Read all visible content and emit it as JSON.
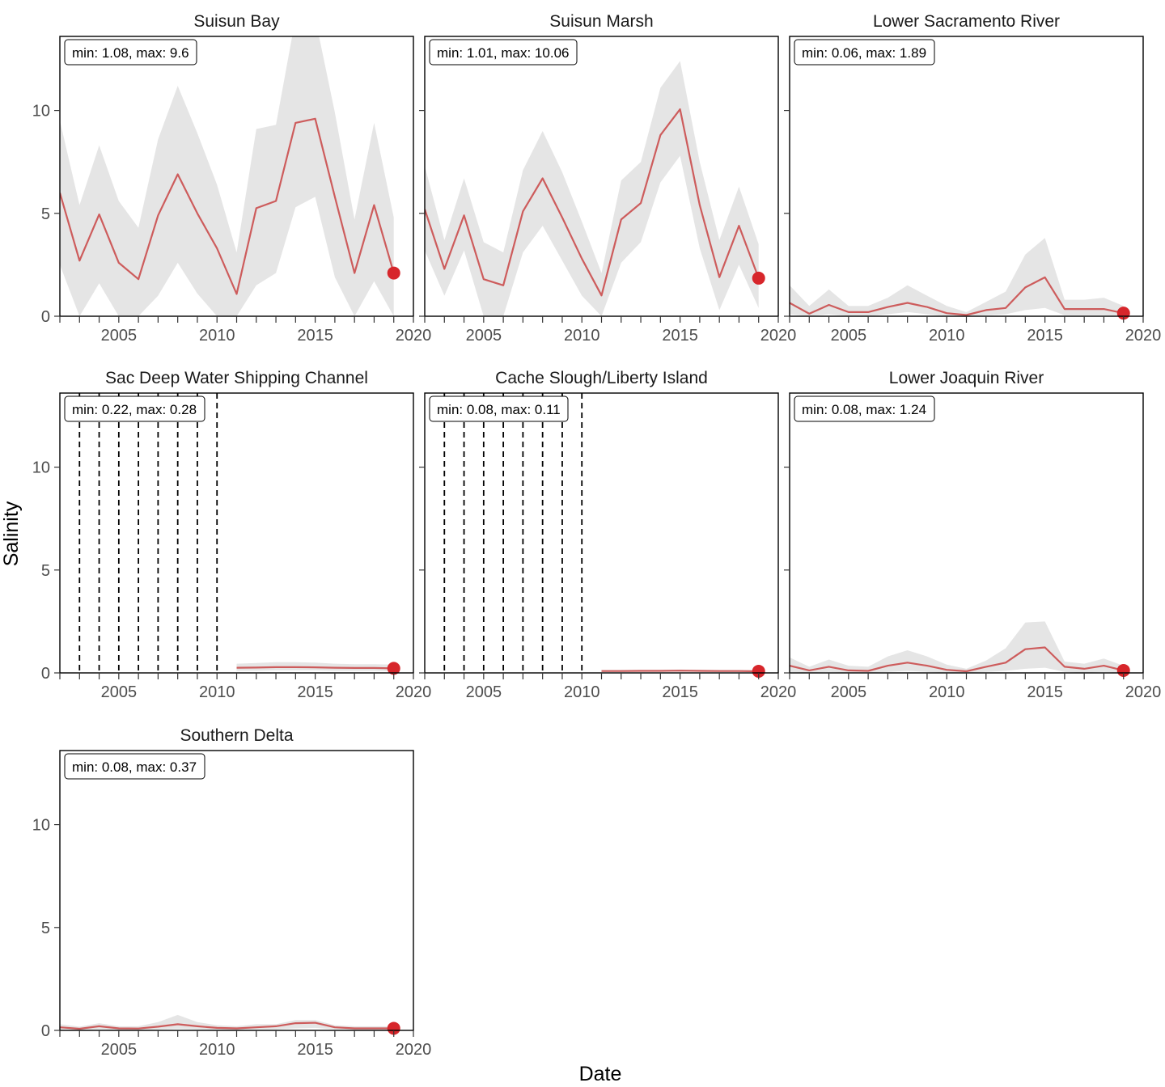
{
  "chart_data": {
    "type": "line",
    "layout": "faceted",
    "xlabel": "Date",
    "ylabel": "Salinity",
    "xlim": [
      2002,
      2020
    ],
    "ylim": [
      0,
      13.6
    ],
    "x_ticks": [
      2005,
      2010,
      2015,
      2020
    ],
    "y_ticks": [
      0,
      5,
      10
    ],
    "legend": "none",
    "colors": {
      "line": "#cd5c5c",
      "ribbon": "#e5e5e5",
      "current_point": "#d7262b",
      "missing_year_marker": "#000000"
    },
    "panels": [
      {
        "title": "Suisun Bay",
        "stats": "min: 1.08, max: 9.6",
        "x": [
          2002,
          2003,
          2004,
          2005,
          2006,
          2007,
          2008,
          2009,
          2010,
          2011,
          2012,
          2013,
          2014,
          2015,
          2016,
          2017,
          2018,
          2019
        ],
        "mean": [
          6.0,
          2.7,
          4.95,
          2.6,
          1.8,
          4.9,
          6.9,
          5.0,
          3.3,
          1.08,
          5.25,
          5.6,
          9.4,
          9.6,
          5.8,
          2.1,
          5.4,
          2.1
        ],
        "lower": [
          2.5,
          0,
          1.6,
          0,
          0,
          1.0,
          2.6,
          1.1,
          0,
          0,
          1.5,
          2.1,
          5.3,
          5.8,
          1.9,
          0,
          1.7,
          0
        ],
        "upper": [
          9.5,
          5.4,
          8.3,
          5.6,
          4.3,
          8.6,
          11.2,
          8.9,
          6.4,
          3.1,
          9.1,
          9.3,
          14.5,
          14.5,
          9.9,
          4.7,
          9.4,
          4.8
        ],
        "current": {
          "x": 2019,
          "y": 2.1
        },
        "missing_years": []
      },
      {
        "title": "Suisun Marsh",
        "stats": "min: 1.01, max: 10.06",
        "x": [
          2002,
          2003,
          2004,
          2005,
          2006,
          2007,
          2008,
          2009,
          2010,
          2011,
          2012,
          2013,
          2014,
          2015,
          2016,
          2017,
          2018,
          2019
        ],
        "mean": [
          5.2,
          2.3,
          4.9,
          1.8,
          1.5,
          5.1,
          6.7,
          4.8,
          2.8,
          1.01,
          4.7,
          5.5,
          8.8,
          10.06,
          5.4,
          1.9,
          4.4,
          1.85
        ],
        "lower": [
          3.2,
          1.0,
          3.2,
          0,
          0,
          3.1,
          4.4,
          2.7,
          1.0,
          0,
          2.6,
          3.6,
          6.5,
          7.8,
          3.3,
          0.3,
          2.5,
          0.4
        ],
        "upper": [
          7.3,
          3.7,
          6.7,
          3.6,
          3.1,
          7.1,
          9.0,
          7.0,
          4.6,
          2.1,
          6.6,
          7.5,
          11.1,
          12.4,
          7.5,
          3.7,
          6.3,
          3.5
        ],
        "current": {
          "x": 2019,
          "y": 1.85
        },
        "missing_years": []
      },
      {
        "title": "Lower Sacramento River",
        "stats": "min: 0.06, max: 1.89",
        "x": [
          2002,
          2003,
          2004,
          2005,
          2006,
          2007,
          2008,
          2009,
          2010,
          2011,
          2012,
          2013,
          2014,
          2015,
          2016,
          2017,
          2018,
          2019
        ],
        "mean": [
          0.65,
          0.12,
          0.55,
          0.2,
          0.2,
          0.45,
          0.65,
          0.45,
          0.15,
          0.06,
          0.3,
          0.4,
          1.4,
          1.89,
          0.35,
          0.35,
          0.35,
          0.15
        ],
        "lower": [
          0.1,
          0,
          0.1,
          0,
          0,
          0.1,
          0.2,
          0.1,
          0,
          0,
          0.05,
          0.1,
          0.3,
          0.4,
          0.05,
          0.05,
          0.05,
          0
        ],
        "upper": [
          1.5,
          0.5,
          1.3,
          0.5,
          0.5,
          0.9,
          1.5,
          1.0,
          0.5,
          0.2,
          0.7,
          1.2,
          3.0,
          3.8,
          0.8,
          0.8,
          0.9,
          0.5
        ],
        "current": {
          "x": 2019,
          "y": 0.15
        },
        "missing_years": []
      },
      {
        "title": "Sac Deep Water Shipping Channel",
        "stats": "min: 0.22, max: 0.28",
        "x": [
          2011,
          2012,
          2013,
          2014,
          2015,
          2016,
          2017,
          2018,
          2019
        ],
        "mean": [
          0.25,
          0.26,
          0.28,
          0.28,
          0.27,
          0.25,
          0.24,
          0.24,
          0.22
        ],
        "lower": [
          0.1,
          0.1,
          0.12,
          0.12,
          0.12,
          0.1,
          0.1,
          0.1,
          0.08
        ],
        "upper": [
          0.45,
          0.48,
          0.52,
          0.52,
          0.5,
          0.45,
          0.42,
          0.42,
          0.4
        ],
        "current": {
          "x": 2019,
          "y": 0.22
        },
        "missing_years": [
          2003,
          2004,
          2005,
          2006,
          2007,
          2008,
          2009,
          2010
        ]
      },
      {
        "title": "Cache Slough/Liberty Island",
        "stats": "min: 0.08, max: 0.11",
        "x": [
          2011,
          2012,
          2013,
          2014,
          2015,
          2016,
          2017,
          2018,
          2019
        ],
        "mean": [
          0.09,
          0.09,
          0.1,
          0.1,
          0.11,
          0.1,
          0.09,
          0.09,
          0.08
        ],
        "lower": [
          0.05,
          0.05,
          0.06,
          0.06,
          0.06,
          0.06,
          0.05,
          0.05,
          0.04
        ],
        "upper": [
          0.14,
          0.14,
          0.15,
          0.15,
          0.16,
          0.15,
          0.14,
          0.14,
          0.13
        ],
        "current": {
          "x": 2019,
          "y": 0.08
        },
        "missing_years": [
          2003,
          2004,
          2005,
          2006,
          2007,
          2008,
          2009,
          2010
        ]
      },
      {
        "title": "Lower Joaquin River",
        "stats": "min: 0.08, max: 1.24",
        "x": [
          2002,
          2003,
          2004,
          2005,
          2006,
          2007,
          2008,
          2009,
          2010,
          2011,
          2012,
          2013,
          2014,
          2015,
          2016,
          2017,
          2018,
          2019
        ],
        "mean": [
          0.35,
          0.12,
          0.3,
          0.12,
          0.1,
          0.35,
          0.5,
          0.35,
          0.15,
          0.08,
          0.3,
          0.5,
          1.15,
          1.24,
          0.3,
          0.2,
          0.35,
          0.12
        ],
        "lower": [
          0.05,
          0,
          0.05,
          0,
          0,
          0.05,
          0.1,
          0.05,
          0,
          0,
          0.05,
          0.1,
          0.2,
          0.25,
          0.05,
          0,
          0.05,
          0
        ],
        "upper": [
          0.75,
          0.3,
          0.65,
          0.35,
          0.3,
          0.8,
          1.1,
          0.8,
          0.4,
          0.2,
          0.6,
          1.2,
          2.45,
          2.5,
          0.55,
          0.45,
          0.7,
          0.35
        ],
        "current": {
          "x": 2019,
          "y": 0.12
        },
        "missing_years": []
      },
      {
        "title": "Southern Delta",
        "stats": "min: 0.08, max: 0.37",
        "x": [
          2002,
          2003,
          2004,
          2005,
          2006,
          2007,
          2008,
          2009,
          2010,
          2011,
          2012,
          2013,
          2014,
          2015,
          2016,
          2017,
          2018,
          2019
        ],
        "mean": [
          0.15,
          0.08,
          0.2,
          0.1,
          0.09,
          0.18,
          0.3,
          0.2,
          0.12,
          0.1,
          0.15,
          0.2,
          0.35,
          0.37,
          0.15,
          0.1,
          0.1,
          0.1
        ],
        "lower": [
          0.05,
          0,
          0.05,
          0,
          0,
          0.05,
          0.08,
          0.05,
          0.02,
          0.02,
          0.05,
          0.05,
          0.1,
          0.12,
          0.05,
          0.02,
          0.02,
          0.02
        ],
        "upper": [
          0.3,
          0.18,
          0.35,
          0.2,
          0.2,
          0.4,
          0.75,
          0.4,
          0.25,
          0.2,
          0.3,
          0.3,
          0.5,
          0.5,
          0.25,
          0.2,
          0.2,
          0.2
        ],
        "current": {
          "x": 2019,
          "y": 0.1
        },
        "missing_years": []
      }
    ]
  }
}
